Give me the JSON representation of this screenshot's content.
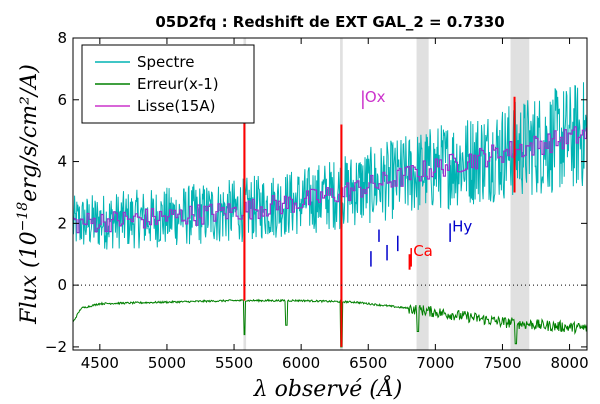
{
  "chart_data": {
    "type": "line",
    "title": "05D2fq : Redshift de EXT GAL_2 = 0.7330",
    "xlabel": "λ observé (Å)",
    "ylabel_main": "Flux (10",
    "ylabel_exp": "−18",
    "ylabel_units": "erg/s/cm²/A)",
    "xlim": [
      4300,
      8130
    ],
    "ylim": [
      -2.1,
      8
    ],
    "xticks": [
      4500,
      5000,
      5500,
      6000,
      6500,
      7000,
      7500,
      8000
    ],
    "yticks": [
      -2,
      0,
      2,
      4,
      6,
      8
    ],
    "zero_line": 0,
    "legend": {
      "placement": "top-left",
      "entries": [
        {
          "label": "Spectre",
          "color": "#00b3b3"
        },
        {
          "label": "Erreur(x-1)",
          "color": "#008000"
        },
        {
          "label": "Lisse(15A)",
          "color": "#cc33cc"
        }
      ]
    },
    "telluric_bands": [
      {
        "x0": 5570,
        "x1": 5590
      },
      {
        "x0": 6290,
        "x1": 6310
      },
      {
        "x0": 6860,
        "x1": 6950
      },
      {
        "x0": 7560,
        "x1": 7700
      }
    ],
    "sky_lines": [
      {
        "x": 5577,
        "y0": -0.5,
        "y1": 5.7
      },
      {
        "x": 6300,
        "y0": -2.0,
        "y1": 5.2
      },
      {
        "x": 6808,
        "y0": 0.5,
        "y1": 1.0
      },
      {
        "x": 7590,
        "y0": 3.0,
        "y1": 6.1
      }
    ],
    "line_markers": [
      {
        "label": "Ox",
        "x": 6460,
        "y": 6.0,
        "color": "#cc33cc",
        "tick_x": 6460,
        "tick_y0": 5.7,
        "tick_y1": 6.3
      },
      {
        "label": "Ca",
        "x": 6820,
        "y": 1.0,
        "color": "#ff0000",
        "tick_x": 6820,
        "tick_y0": 0.6,
        "tick_y1": 1.2
      },
      {
        "label": "Hy",
        "x": 7110,
        "y": 1.8,
        "color": "#0000cc",
        "tick_x": 7110,
        "tick_y0": 1.4,
        "tick_y1": 2.0
      }
    ],
    "blue_ticks": [
      {
        "x": 6520,
        "y0": 0.6,
        "y1": 1.1
      },
      {
        "x": 6580,
        "y0": 1.4,
        "y1": 1.8
      },
      {
        "x": 6640,
        "y0": 0.8,
        "y1": 1.3
      },
      {
        "x": 6720,
        "y0": 1.1,
        "y1": 1.6
      }
    ],
    "series_colors": {
      "spectrum": "#00b3b3",
      "smooth": "#9933cc",
      "error": "#008000",
      "sky": "#ff0000"
    },
    "series": [
      {
        "name": "Spectre",
        "trend": [
          [
            4300,
            2.0
          ],
          [
            5000,
            2.2
          ],
          [
            5500,
            2.4
          ],
          [
            6000,
            2.7
          ],
          [
            6500,
            3.2
          ],
          [
            7000,
            3.8
          ],
          [
            7500,
            4.3
          ],
          [
            8130,
            4.9
          ]
        ],
        "noise": [
          [
            4300,
            0.9
          ],
          [
            6000,
            1.1
          ],
          [
            7000,
            1.4
          ],
          [
            8130,
            1.8
          ]
        ]
      },
      {
        "name": "Lisse(15A)",
        "trend": [
          [
            4300,
            2.0
          ],
          [
            5000,
            2.2
          ],
          [
            5500,
            2.4
          ],
          [
            6000,
            2.7
          ],
          [
            6500,
            3.2
          ],
          [
            7000,
            3.8
          ],
          [
            7500,
            4.3
          ],
          [
            8130,
            4.9
          ]
        ]
      },
      {
        "name": "Erreur(x-1)",
        "trend": [
          [
            4300,
            -1.2
          ],
          [
            4360,
            -0.75
          ],
          [
            4500,
            -0.6
          ],
          [
            5000,
            -0.55
          ],
          [
            5500,
            -0.5
          ],
          [
            6000,
            -0.5
          ],
          [
            6400,
            -0.55
          ],
          [
            6800,
            -0.75
          ],
          [
            7200,
            -1.0
          ],
          [
            7500,
            -1.2
          ],
          [
            7800,
            -1.3
          ],
          [
            8130,
            -1.4
          ]
        ],
        "dips": [
          {
            "x": 5577,
            "depth": -1.6
          },
          {
            "x": 5890,
            "depth": -1.3
          },
          {
            "x": 6300,
            "depth": -2.0
          },
          {
            "x": 6870,
            "depth": -1.5
          },
          {
            "x": 7600,
            "depth": -1.9
          }
        ]
      }
    ]
  }
}
